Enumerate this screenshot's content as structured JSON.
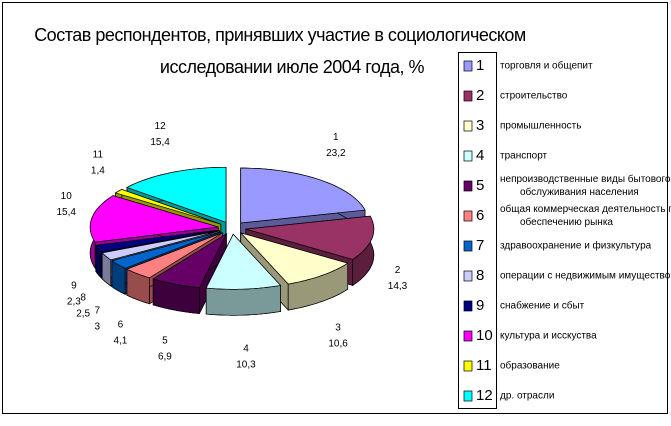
{
  "chart_data": {
    "type": "pie3d",
    "title": [
      "Состав респондентов, принявших участие в социологическом",
      "исследовании июле 2004 года, %"
    ],
    "categories": [
      "1",
      "2",
      "3",
      "4",
      "5",
      "6",
      "7",
      "8",
      "9",
      "10",
      "11",
      "12"
    ],
    "legend_labels": [
      [
        "торговля и общепит"
      ],
      [
        "строительство"
      ],
      [
        "промышленность"
      ],
      [
        "транспорт"
      ],
      [
        "непроизводственные виды бытового",
        "обслуживания населения"
      ],
      [
        "общая коммерческая деятельность по",
        "обеспечению рынка"
      ],
      [
        "здравоохранение и физкультура"
      ],
      [
        "операции с недвижимым имуществом"
      ],
      [
        "снабжение и сбыт"
      ],
      [
        "культура и исскуства"
      ],
      [
        "образование"
      ],
      [
        "др. отрасли"
      ]
    ],
    "values": [
      23.2,
      14.3,
      10.6,
      10.3,
      6.9,
      4.1,
      3,
      2.5,
      2.3,
      15.4,
      1.4,
      15.4
    ],
    "value_labels": [
      "23,2",
      "14,3",
      "10,6",
      "10,3",
      "6,9",
      "4,1",
      "3",
      "2,5",
      "2,3",
      "15,4",
      "1,4",
      "15,4"
    ],
    "colors": [
      "#9999ff",
      "#993366",
      "#ffffcc",
      "#ccffff",
      "#660066",
      "#ff8080",
      "#0066cc",
      "#ccccff",
      "#000080",
      "#ff00ff",
      "#ffff00",
      "#00ffff"
    ],
    "legend": "right"
  }
}
